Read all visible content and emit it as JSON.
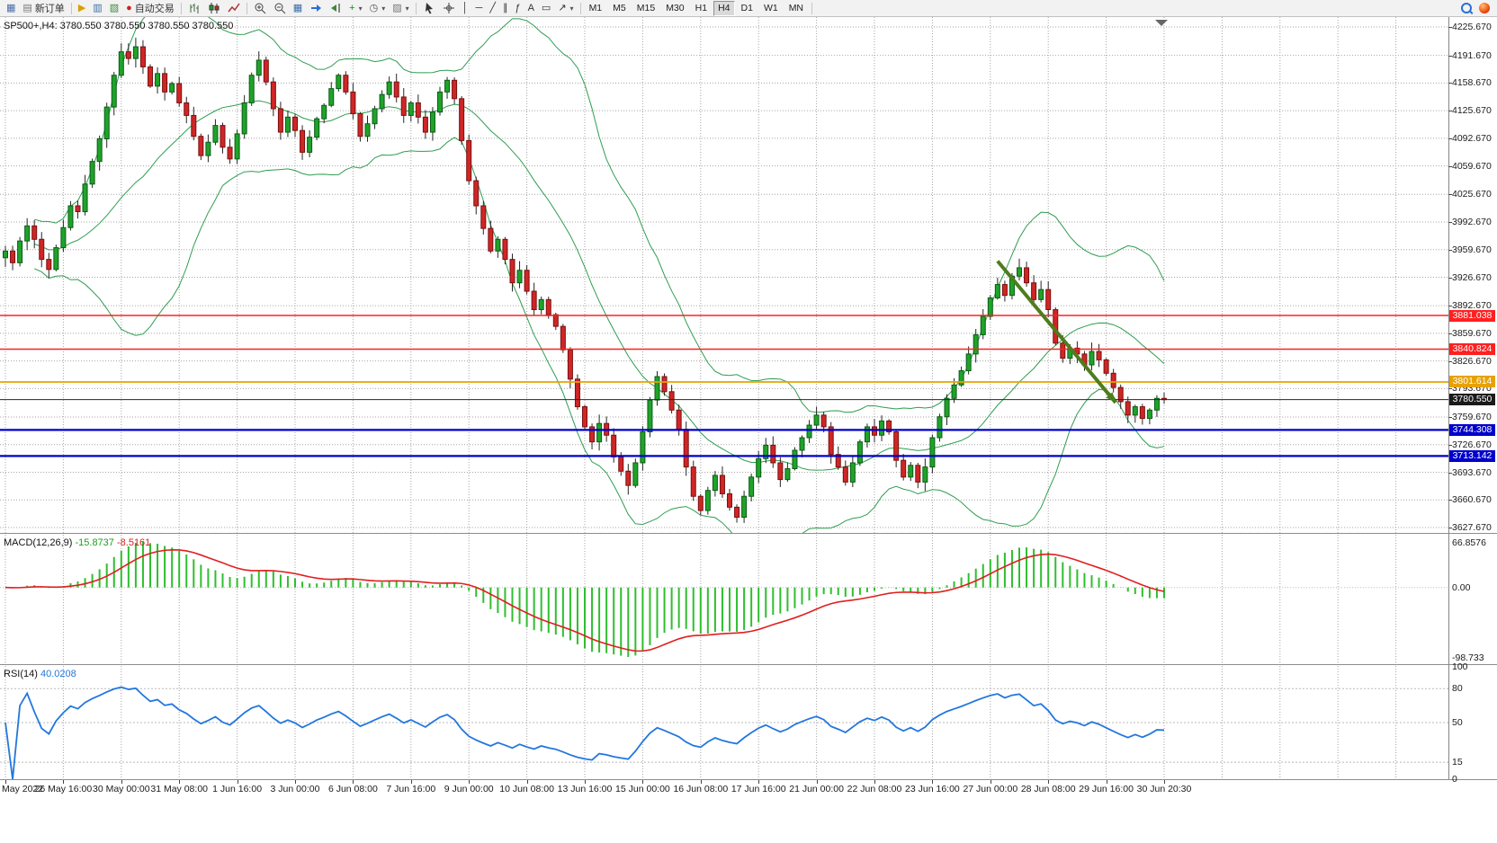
{
  "colors": {
    "up": "#1fa32a",
    "up_border": "#0c5c14",
    "down": "#cf2626",
    "down_border": "#7a1010",
    "wick": "#262626",
    "bollinger": "#2e9e50",
    "grid": "#a6a6a6",
    "macd_hist": "#2fbe2f",
    "macd_signal": "#e01f1f",
    "rsi_line": "#2277dd",
    "level_red": "#ff2020",
    "level_gold": "#e8a200",
    "level_blue": "#0000cc",
    "level_black": "#262626",
    "arrow": "#4e7d1d",
    "box_black": "#1a1a1a"
  },
  "app": {
    "toolbar": {
      "groups": [
        {
          "items": [
            {
              "name": "chart-window-icon",
              "glyph": "▦",
              "color": "#4a6da8"
            },
            {
              "name": "new-order-button",
              "label": "新订单",
              "glyph": "▤",
              "color": "#777"
            }
          ]
        },
        {
          "items": [
            {
              "name": "profiles-icon",
              "glyph": "▶",
              "color": "#d8a000"
            },
            {
              "name": "market-watch-icon",
              "glyph": "▥",
              "color": "#3a6ea5"
            },
            {
              "name": "navigator-icon",
              "glyph": "▧",
              "color": "#3a8a3a"
            },
            {
              "name": "auto-trading-button",
              "label": "自动交易",
              "glyph": "●",
              "color": "#cc2222"
            }
          ]
        },
        {
          "items": [
            {
              "name": "bars-chart-icon",
              "svg": "bars"
            },
            {
              "name": "candlestick-chart-icon",
              "svg": "candles"
            },
            {
              "name": "line-chart-icon",
              "svg": "line"
            }
          ]
        },
        {
          "items": [
            {
              "name": "zoom-in-icon",
              "svg": "zoomin"
            },
            {
              "name": "zoom-out-icon",
              "svg": "zoomout"
            },
            {
              "name": "tile-windows-icon",
              "glyph": "▦",
              "color": "#3a6ea5"
            },
            {
              "name": "auto-scroll-icon",
              "svg": "autoscroll"
            },
            {
              "name": "chart-shift-icon",
              "svg": "shift"
            },
            {
              "name": "indicators-icon",
              "glyph": "+",
              "color": "#1a8a1a",
              "caret": true
            },
            {
              "name": "periods-icon",
              "glyph": "◷",
              "color": "#555",
              "caret": true
            },
            {
              "name": "templates-icon",
              "glyph": "▨",
              "color": "#777",
              "caret": true
            }
          ]
        },
        {
          "items": [
            {
              "name": "cursor-icon",
              "svg": "cursor"
            },
            {
              "name": "crosshair-icon",
              "svg": "crosshair"
            },
            {
              "name": "vertical-line-icon",
              "glyph": "│",
              "color": "#333"
            },
            {
              "name": "horizontal-line-icon",
              "glyph": "─",
              "color": "#333"
            },
            {
              "name": "trendline-icon",
              "glyph": "╱",
              "color": "#333"
            },
            {
              "name": "channel-icon",
              "glyph": "∥",
              "color": "#333"
            },
            {
              "name": "fibonacci-icon",
              "glyph": "ƒ",
              "color": "#333"
            },
            {
              "name": "text-tool-icon",
              "glyph": "A",
              "color": "#333"
            },
            {
              "name": "label-tool-icon",
              "glyph": "▭",
              "color": "#333"
            },
            {
              "name": "arrows-tool-icon",
              "glyph": "↗",
              "color": "#333",
              "caret": true
            }
          ]
        }
      ],
      "timeframes": [
        "M1",
        "M5",
        "M15",
        "M30",
        "H1",
        "H4",
        "D1",
        "W1",
        "MN"
      ],
      "active_timeframe": "H4",
      "right_icons": [
        {
          "name": "search-icon"
        },
        {
          "name": "notification-icon"
        }
      ]
    }
  },
  "chart_data": {
    "type": "candlestick",
    "symbol": "SP500+",
    "timeframe": "H4",
    "symbol_ohlc_line": "SP500+,H4: 3780.550 3780.550 3780.550 3780.550",
    "y_axis": {
      "max": 4225.67,
      "min": 3627.67,
      "ticks": [
        "4225.670",
        "4191.670",
        "4158.670",
        "4125.670",
        "4092.670",
        "4059.670",
        "4025.670",
        "3992.670",
        "3959.670",
        "3926.670",
        "3892.670",
        "3859.670",
        "3826.670",
        "3793.670",
        "3759.670",
        "3726.670",
        "3693.670",
        "3660.670",
        "3627.670"
      ]
    },
    "x_axis": {
      "labels": [
        "May 2022",
        "26 May 16:00",
        "30 May 00:00",
        "31 May 08:00",
        "1 Jun 16:00",
        "3 Jun 00:00",
        "6 Jun 08:00",
        "7 Jun 16:00",
        "9 Jun 00:00",
        "10 Jun 08:00",
        "13 Jun 16:00",
        "15 Jun 00:00",
        "16 Jun 08:00",
        "17 Jun 16:00",
        "21 Jun 00:00",
        "22 Jun 08:00",
        "23 Jun 16:00",
        "27 Jun 00:00",
        "28 Jun 08:00",
        "29 Jun 16:00",
        "30 Jun 20:30"
      ]
    },
    "closes": [
      3958,
      3944,
      3970,
      3988,
      3972,
      3948,
      3936,
      3962,
      3986,
      4012,
      4005,
      4038,
      4065,
      4092,
      4130,
      4168,
      4196,
      4188,
      4202,
      4178,
      4155,
      4170,
      4148,
      4158,
      4135,
      4120,
      4095,
      4072,
      4088,
      4108,
      4082,
      4068,
      4098,
      4135,
      4168,
      4186,
      4160,
      4128,
      4100,
      4118,
      4102,
      4076,
      4094,
      4116,
      4132,
      4152,
      4168,
      4148,
      4122,
      4095,
      4110,
      4128,
      4145,
      4160,
      4142,
      4120,
      4135,
      4118,
      4100,
      4124,
      4148,
      4162,
      4140,
      4090,
      4042,
      4012,
      3985,
      3958,
      3972,
      3948,
      3920,
      3935,
      3910,
      3888,
      3900,
      3882,
      3868,
      3840,
      3805,
      3772,
      3748,
      3730,
      3752,
      3738,
      3712,
      3695,
      3678,
      3705,
      3742,
      3780,
      3808,
      3790,
      3768,
      3745,
      3700,
      3665,
      3648,
      3672,
      3690,
      3668,
      3652,
      3640,
      3665,
      3688,
      3710,
      3726,
      3705,
      3685,
      3698,
      3720,
      3735,
      3750,
      3762,
      3748,
      3715,
      3700,
      3682,
      3705,
      3730,
      3748,
      3738,
      3755,
      3742,
      3708,
      3688,
      3702,
      3682,
      3700,
      3735,
      3760,
      3782,
      3798,
      3815,
      3835,
      3858,
      3880,
      3902,
      3918,
      3905,
      3928,
      3938,
      3920,
      3900,
      3912,
      3888,
      3848,
      3830,
      3842,
      3835,
      3822,
      3838,
      3828,
      3812,
      3795,
      3778,
      3762,
      3772,
      3758,
      3768,
      3782,
      3780.55
    ],
    "bollinger": {
      "period": 20,
      "deviation": 2
    },
    "levels": [
      {
        "value": "3881.038",
        "price": 3881.038,
        "color_key": "level_red",
        "width": 1.5
      },
      {
        "value": "3840.824",
        "price": 3840.824,
        "color_key": "level_red",
        "width": 1.5
      },
      {
        "value": "3801.614",
        "price": 3801.614,
        "color_key": "level_gold",
        "width": 1.8
      },
      {
        "value": "3780.550",
        "price": 3780.55,
        "color_key": "level_black",
        "width": 1
      },
      {
        "value": "3744.308",
        "price": 3744.308,
        "color_key": "level_blue",
        "width": 2.2
      },
      {
        "value": "3713.142",
        "price": 3713.142,
        "color_key": "level_blue",
        "width": 2.2
      }
    ],
    "trend_arrow": {
      "from": {
        "bar": 137,
        "price": 3946
      },
      "to": {
        "bar": 153.3,
        "price": 3777
      }
    },
    "indicators": {
      "macd": {
        "name": "MACD(12,26,9)",
        "fast": 12,
        "slow": 26,
        "signal": 9,
        "main_value": "-15.8737",
        "signal_value": "-8.5161",
        "scale_top": "66.8576",
        "scale_zero": "0.00",
        "scale_bottom": "-98.733"
      },
      "rsi": {
        "name": "RSI(14)",
        "period": 14,
        "value": "40.0208",
        "scale_labels": [
          "100",
          "80",
          "50",
          "15",
          "0"
        ],
        "level_values": [
          100,
          80,
          50,
          15,
          0
        ],
        "dashed_levels": [
          80,
          50,
          15
        ]
      }
    }
  }
}
